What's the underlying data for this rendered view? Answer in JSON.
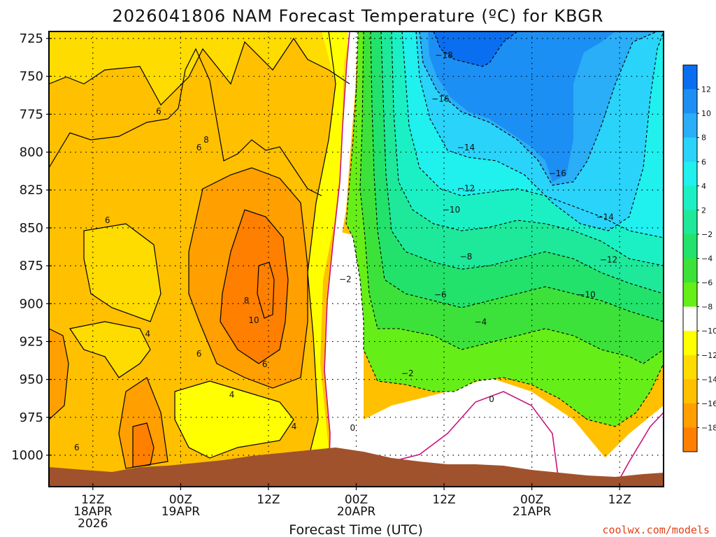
{
  "chart_data": {
    "type": "heatmap",
    "title": "2026041806 NAM Forecast Temperature (ºC) for KBGR",
    "xlabel": "Forecast Time (UTC)",
    "ylabel": "",
    "x_ticks": [
      {
        "hours": 6,
        "lines": [
          "12Z",
          "18APR",
          "2026"
        ]
      },
      {
        "hours": 18,
        "lines": [
          "00Z",
          "19APR"
        ]
      },
      {
        "hours": 30,
        "lines": [
          "12Z"
        ]
      },
      {
        "hours": 42,
        "lines": [
          "00Z",
          "20APR"
        ]
      },
      {
        "hours": 54,
        "lines": [
          "12Z"
        ]
      },
      {
        "hours": 66,
        "lines": [
          "00Z",
          "21APR"
        ]
      },
      {
        "hours": 78,
        "lines": [
          "12Z"
        ]
      }
    ],
    "xlim": [
      0,
      84
    ],
    "y_ticks": [
      725,
      750,
      775,
      800,
      825,
      850,
      875,
      900,
      925,
      950,
      975,
      1000
    ],
    "ylim": [
      720,
      1020
    ],
    "colorbar": {
      "levels": [
        -20,
        -18,
        -16,
        -14,
        -12,
        -10,
        -8,
        -6,
        -4,
        -2,
        2,
        4,
        6,
        8,
        10,
        12,
        14
      ],
      "labels": [
        "12",
        "10",
        "8",
        "6",
        "4",
        "2",
        "−2",
        "−4",
        "−6",
        "−8",
        "−10",
        "−12",
        "−14",
        "−16",
        "−18"
      ],
      "colors": [
        "#0a6ef0",
        "#1c8ff4",
        "#29aef7",
        "#2ad3f9",
        "#20f0ee",
        "#1bf0c4",
        "#1ee89a",
        "#22e26b",
        "#3ce23a",
        "#66ee18",
        "#ffffff",
        "#ffff00",
        "#ffdc00",
        "#ffc000",
        "#ff9f00",
        "#ff7f00"
      ]
    },
    "contour_labels": [
      {
        "t": 15.0,
        "p": 773,
        "text": "6"
      },
      {
        "t": 20.5,
        "p": 797,
        "text": "6"
      },
      {
        "t": 21.5,
        "p": 792,
        "text": "8"
      },
      {
        "t": 8.0,
        "p": 845,
        "text": "6"
      },
      {
        "t": 27.0,
        "p": 898,
        "text": "8"
      },
      {
        "t": 28.0,
        "p": 911,
        "text": "10"
      },
      {
        "t": 13.5,
        "p": 920,
        "text": "4"
      },
      {
        "t": 20.5,
        "p": 933,
        "text": "6"
      },
      {
        "t": 29.5,
        "p": 940,
        "text": "6"
      },
      {
        "t": 25.0,
        "p": 960,
        "text": "4"
      },
      {
        "t": 33.5,
        "p": 981,
        "text": "4"
      },
      {
        "t": 3.8,
        "p": 995,
        "text": "6"
      },
      {
        "t": 40.5,
        "p": 884,
        "text": "−2"
      },
      {
        "t": 41.5,
        "p": 982,
        "text": "0"
      },
      {
        "t": 60.5,
        "p": 963,
        "text": "0"
      },
      {
        "t": 49.0,
        "p": 946,
        "text": "−2"
      },
      {
        "t": 59.0,
        "p": 912,
        "text": "−4"
      },
      {
        "t": 53.5,
        "p": 894,
        "text": "−6"
      },
      {
        "t": 73.5,
        "p": 894,
        "text": "−10"
      },
      {
        "t": 57.0,
        "p": 869,
        "text": "−8"
      },
      {
        "t": 76.5,
        "p": 871,
        "text": "−12"
      },
      {
        "t": 55.0,
        "p": 838,
        "text": "−10"
      },
      {
        "t": 76.0,
        "p": 843,
        "text": "−14"
      },
      {
        "t": 57.0,
        "p": 824,
        "text": "−12"
      },
      {
        "t": 57.0,
        "p": 797,
        "text": "−14"
      },
      {
        "t": 69.5,
        "p": 814,
        "text": "−16"
      },
      {
        "t": 53.5,
        "p": 765,
        "text": "−16"
      },
      {
        "t": 54.0,
        "p": 736,
        "text": "−18"
      }
    ]
  },
  "watermark": "coolwx.com/models",
  "colors": {
    "ground": "#a0522d",
    "frame": "#000000",
    "zero_contour": "#c8147a",
    "grid": "#000000"
  }
}
